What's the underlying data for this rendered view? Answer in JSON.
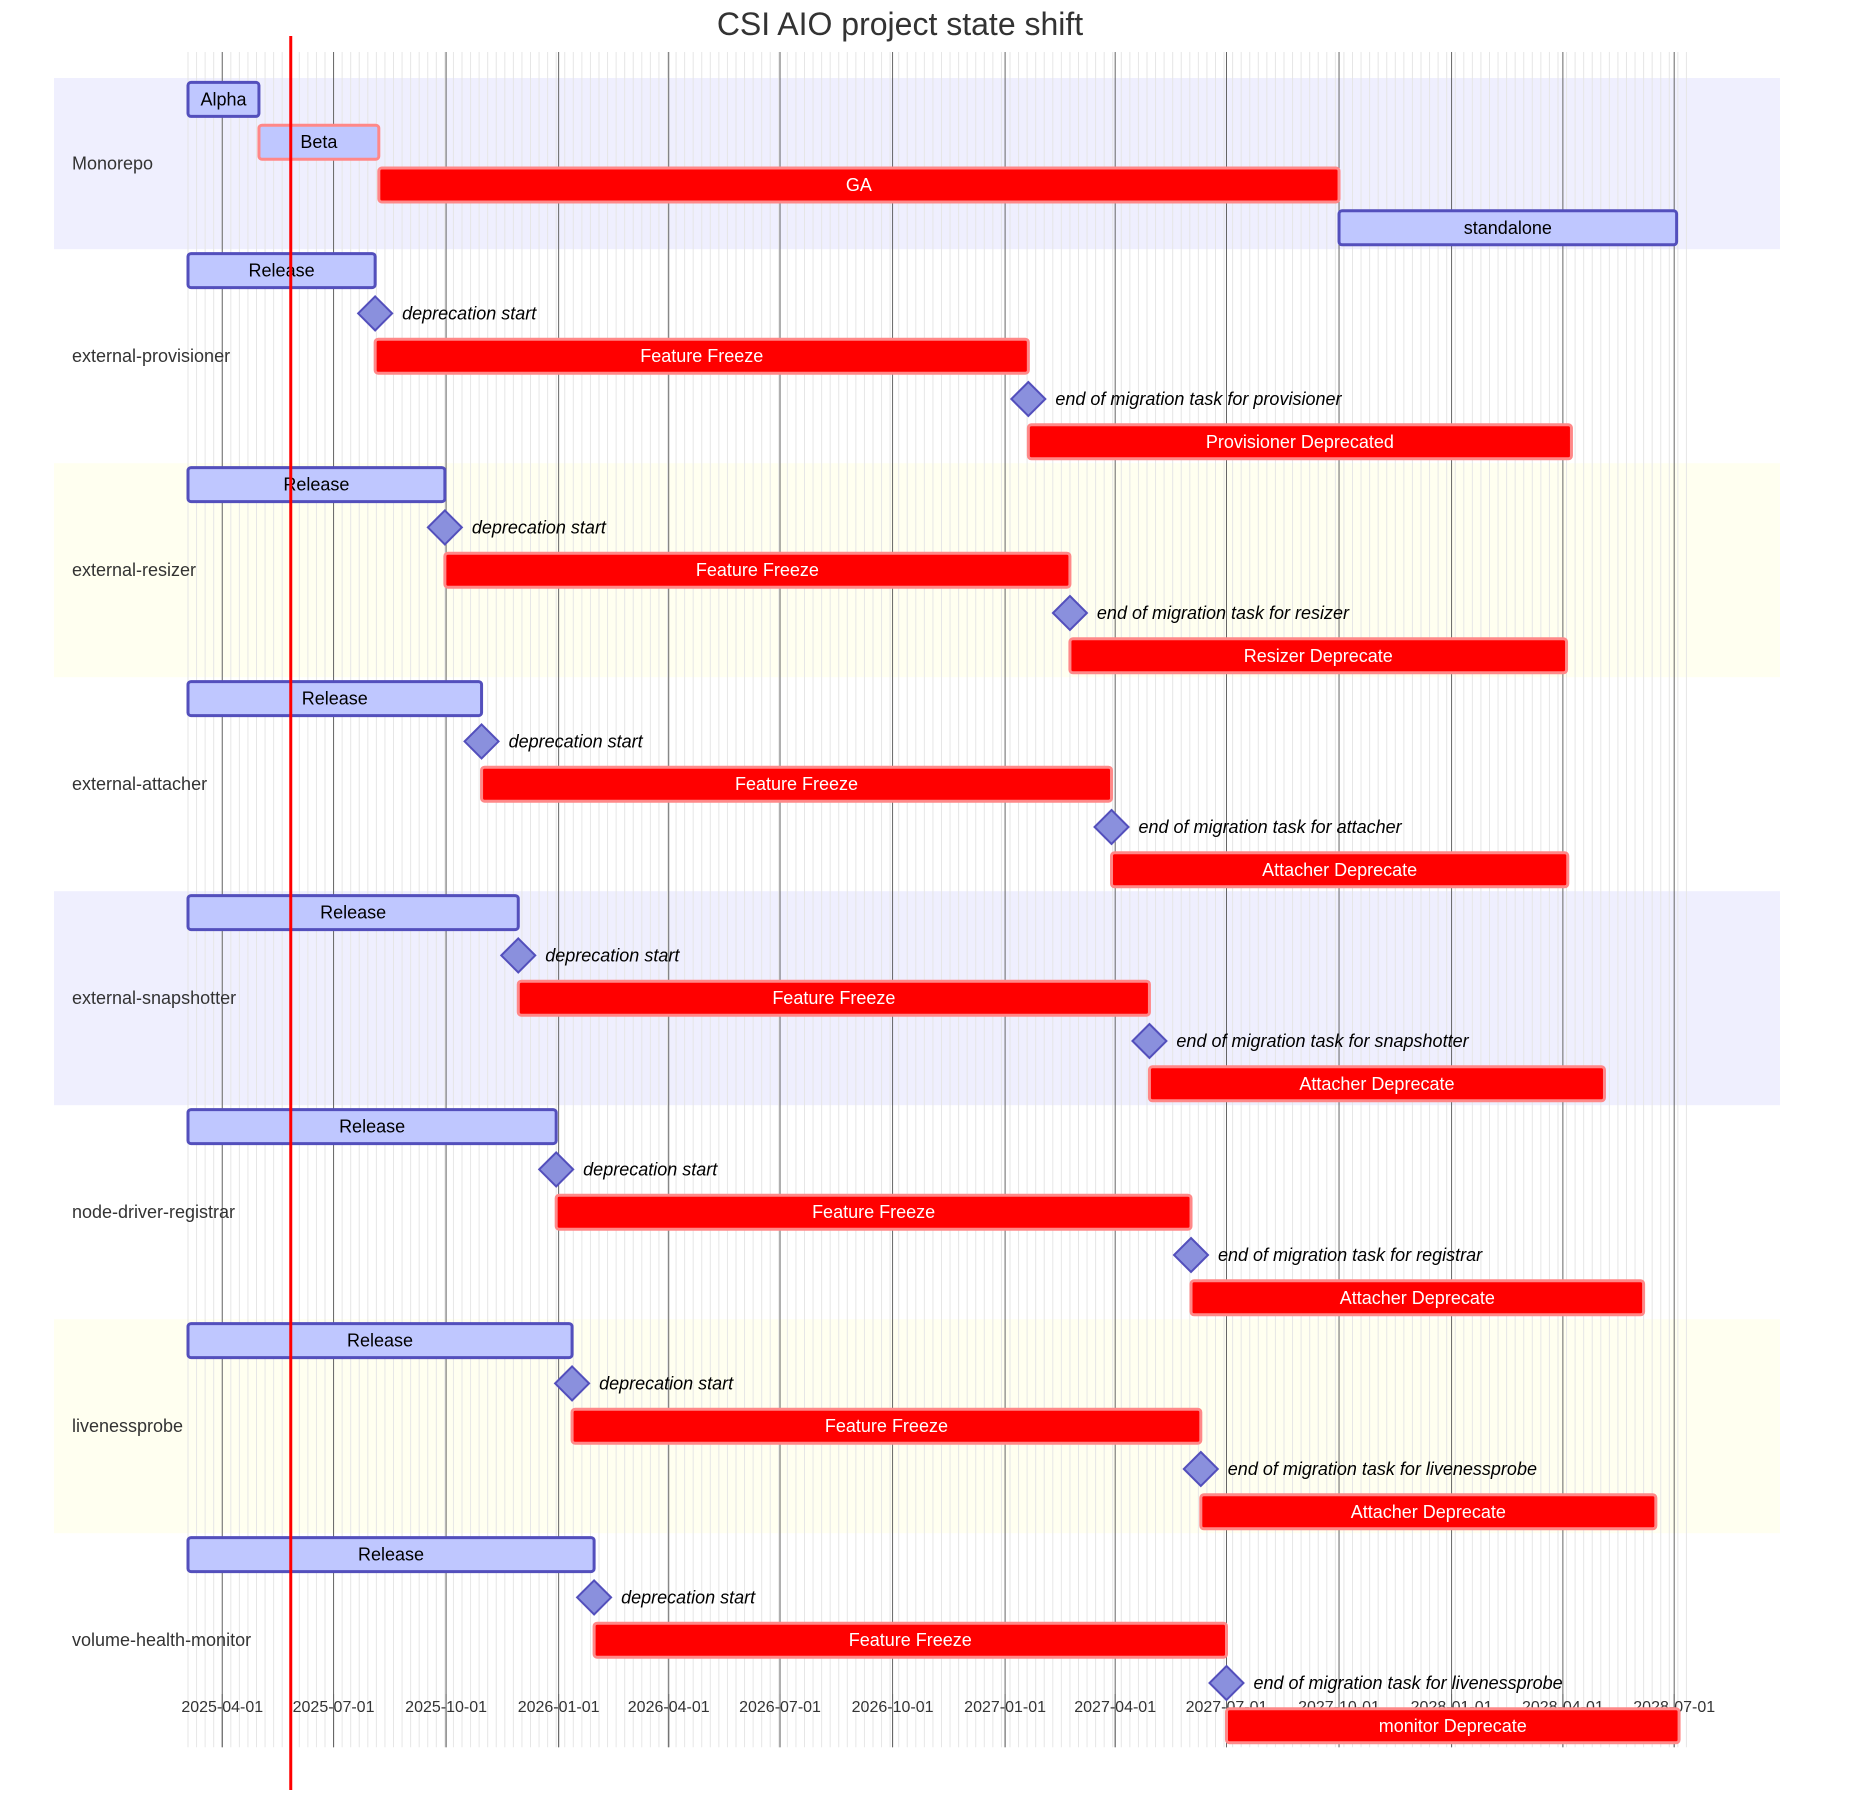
{
  "chart_data": {
    "type": "gantt",
    "title": "CSI AIO project state shift",
    "today": "2025-05-27",
    "x_ticks": [
      "2025-04-01",
      "2025-07-01",
      "2025-10-01",
      "2026-01-01",
      "2026-04-01",
      "2026-07-01",
      "2026-10-01",
      "2027-01-01",
      "2027-04-01",
      "2027-07-01",
      "2027-10-01",
      "2028-01-01",
      "2028-04-01",
      "2028-07-01"
    ],
    "colors": {
      "done_fill": "#bfc7ff",
      "done_stroke": "#534fbc",
      "active_fill": "#bfc7ff",
      "active_stroke": "#ff8888",
      "crit_fill": "#ff0000",
      "crit_stroke": "#ff8888",
      "milestone_fill": "#8a90dd",
      "milestone_stroke": "#534fbc",
      "today_line": "#ff0000",
      "section_odd": "#efeffe",
      "section_even": "#fffff0"
    },
    "sections": [
      {
        "name": "Monorepo",
        "tasks": [
          {
            "label": "Alpha",
            "style": "done",
            "start": "2025-03-04",
            "end": "2025-05-01"
          },
          {
            "label": "Beta",
            "style": "active",
            "start": "2025-05-01",
            "end": "2025-08-07"
          },
          {
            "label": "GA",
            "style": "crit",
            "start": "2025-08-07",
            "end": "2027-10-01"
          },
          {
            "label": "standalone",
            "style": "done",
            "start": "2027-10-01",
            "end": "2028-07-03"
          }
        ]
      },
      {
        "name": "external-provisioner",
        "tasks": [
          {
            "label": "Release",
            "style": "done",
            "start": "2025-03-04",
            "end": "2025-08-04"
          },
          {
            "label": "deprecation start",
            "style": "milestone",
            "start": "2025-08-04"
          },
          {
            "label": "Feature Freeze",
            "style": "crit",
            "start": "2025-08-04",
            "end": "2027-01-20"
          },
          {
            "label": "end of migration task for provisioner",
            "style": "milestone",
            "start": "2027-01-20"
          },
          {
            "label": "Provisioner Deprecated",
            "style": "crit",
            "start": "2027-01-20",
            "end": "2028-04-08"
          }
        ]
      },
      {
        "name": "external-resizer",
        "tasks": [
          {
            "label": "Release",
            "style": "done",
            "start": "2025-03-04",
            "end": "2025-09-30"
          },
          {
            "label": "deprecation start",
            "style": "milestone",
            "start": "2025-09-30"
          },
          {
            "label": "Feature Freeze",
            "style": "crit",
            "start": "2025-09-30",
            "end": "2027-02-23"
          },
          {
            "label": "end of migration task for resizer",
            "style": "milestone",
            "start": "2027-02-23"
          },
          {
            "label": "Resizer Deprecate",
            "style": "crit",
            "start": "2027-02-23",
            "end": "2028-04-04"
          }
        ]
      },
      {
        "name": "external-attacher",
        "tasks": [
          {
            "label": "Release",
            "style": "done",
            "start": "2025-03-04",
            "end": "2025-10-30"
          },
          {
            "label": "deprecation start",
            "style": "milestone",
            "start": "2025-10-30"
          },
          {
            "label": "Feature Freeze",
            "style": "crit",
            "start": "2025-10-30",
            "end": "2027-03-29"
          },
          {
            "label": "end of migration task for attacher",
            "style": "milestone",
            "start": "2027-03-29"
          },
          {
            "label": "Attacher Deprecate",
            "style": "crit",
            "start": "2027-03-29",
            "end": "2028-04-05"
          }
        ]
      },
      {
        "name": "external-snapshotter",
        "tasks": [
          {
            "label": "Release",
            "style": "done",
            "start": "2025-03-04",
            "end": "2025-11-29"
          },
          {
            "label": "deprecation start",
            "style": "milestone",
            "start": "2025-11-29"
          },
          {
            "label": "Feature Freeze",
            "style": "crit",
            "start": "2025-11-29",
            "end": "2027-04-29"
          },
          {
            "label": "end of migration task for snapshotter",
            "style": "milestone",
            "start": "2027-04-29"
          },
          {
            "label": "Attacher Deprecate",
            "style": "crit",
            "start": "2027-04-29",
            "end": "2028-05-05"
          }
        ]
      },
      {
        "name": "node-driver-registrar",
        "tasks": [
          {
            "label": "Release",
            "style": "done",
            "start": "2025-03-04",
            "end": "2025-12-30"
          },
          {
            "label": "deprecation start",
            "style": "milestone",
            "start": "2025-12-30"
          },
          {
            "label": "Feature Freeze",
            "style": "crit",
            "start": "2025-12-30",
            "end": "2027-06-02"
          },
          {
            "label": "end of migration task for registrar",
            "style": "milestone",
            "start": "2027-06-02"
          },
          {
            "label": "Attacher Deprecate",
            "style": "crit",
            "start": "2027-06-02",
            "end": "2028-06-06"
          }
        ]
      },
      {
        "name": "livenessprobe",
        "tasks": [
          {
            "label": "Release",
            "style": "done",
            "start": "2025-03-04",
            "end": "2026-01-12"
          },
          {
            "label": "deprecation start",
            "style": "milestone",
            "start": "2026-01-12"
          },
          {
            "label": "Feature Freeze",
            "style": "crit",
            "start": "2026-01-12",
            "end": "2027-06-10"
          },
          {
            "label": "end of migration task for livenessprobe",
            "style": "milestone",
            "start": "2027-06-10"
          },
          {
            "label": "Attacher Deprecate",
            "style": "crit",
            "start": "2027-06-10",
            "end": "2028-06-16"
          }
        ]
      },
      {
        "name": "volume-health-monitor",
        "tasks": [
          {
            "label": "Release",
            "style": "done",
            "start": "2025-03-04",
            "end": "2026-01-30"
          },
          {
            "label": "deprecation start",
            "style": "milestone",
            "start": "2026-01-30"
          },
          {
            "label": "Feature Freeze",
            "style": "crit",
            "start": "2026-01-30",
            "end": "2027-07-01"
          },
          {
            "label": "end of migration task for livenessprobe",
            "style": "milestone",
            "start": "2027-07-01"
          },
          {
            "label": "monitor Deprecate",
            "style": "crit",
            "start": "2027-07-01",
            "end": "2028-07-05"
          }
        ]
      }
    ]
  }
}
